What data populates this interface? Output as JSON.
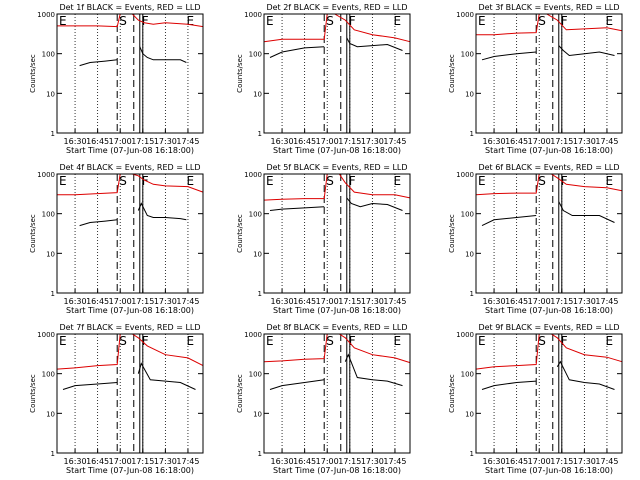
{
  "figure": {
    "xlabel": "Start Time (07-Jun-08 16:18:00)",
    "ylabel": "Counts/sec"
  },
  "colors": {
    "events": "#000000",
    "lld": "#dd0000",
    "axes": "#000000",
    "background": "#ffffff"
  },
  "chart_data": [
    {
      "type": "line",
      "title": "Det 1f BLACK = Events, RED = LLD",
      "xlabel": "Start Time (07-Jun-08 16:18:00)",
      "ylabel": "Counts/sec",
      "yscale": "log",
      "ylim": [
        1,
        1000
      ],
      "xlim": [
        "16:18",
        "17:55"
      ],
      "xticks": [
        "16:30",
        "16:45",
        "17:00",
        "17:15",
        "17:30",
        "17:45"
      ],
      "yticks": [
        "1",
        "10",
        "100",
        "1000"
      ],
      "markers": [
        "E",
        "S",
        "F",
        "E"
      ],
      "grid": false,
      "series": [
        {
          "name": "Events",
          "color": "#000000",
          "x": [
            "16:33",
            "16:40",
            "16:50",
            "16:58",
            "17:09",
            "17:13",
            "17:15",
            "17:18",
            "17:22",
            "17:30",
            "17:40",
            "17:44"
          ],
          "y": [
            50,
            60,
            65,
            70,
            null,
            150,
            100,
            80,
            70,
            70,
            70,
            60
          ]
        },
        {
          "name": "LLD",
          "color": "#dd0000",
          "x": [
            "16:18",
            "16:30",
            "16:45",
            "16:58",
            "17:00",
            "17:04",
            "17:08",
            "17:12",
            "17:16",
            "17:22",
            "17:30",
            "17:45",
            "17:55"
          ],
          "y": [
            500,
            500,
            500,
            480,
            1000,
            1000,
            1000,
            700,
            600,
            550,
            600,
            550,
            480
          ]
        }
      ]
    },
    {
      "type": "line",
      "title": "Det 2f BLACK = Events, RED = LLD",
      "xlabel": "Start Time (07-Jun-08 16:18:00)",
      "ylabel": "Counts/sec",
      "yscale": "log",
      "ylim": [
        1,
        1000
      ],
      "xlim": [
        "16:18",
        "17:55"
      ],
      "xticks": [
        "16:30",
        "16:45",
        "17:00",
        "17:15",
        "17:30",
        "17:45"
      ],
      "yticks": [
        "1",
        "10",
        "100",
        "1000"
      ],
      "markers": [
        "E",
        "S",
        "F",
        "E"
      ],
      "grid": false,
      "series": [
        {
          "name": "Events",
          "color": "#000000",
          "x": [
            "16:22",
            "16:30",
            "16:45",
            "16:58",
            "17:09",
            "17:13",
            "17:15",
            "17:20",
            "17:30",
            "17:40",
            "17:50"
          ],
          "y": [
            80,
            110,
            140,
            150,
            null,
            250,
            180,
            150,
            160,
            170,
            120
          ]
        },
        {
          "name": "LLD",
          "color": "#dd0000",
          "x": [
            "16:18",
            "16:30",
            "16:45",
            "16:58",
            "17:00",
            "17:05",
            "17:12",
            "17:18",
            "17:30",
            "17:45",
            "17:55"
          ],
          "y": [
            200,
            230,
            230,
            230,
            1000,
            1000,
            700,
            400,
            300,
            250,
            200
          ]
        }
      ]
    },
    {
      "type": "line",
      "title": "Det 3f BLACK = Events, RED = LLD",
      "xlabel": "Start Time (07-Jun-08 16:18:00)",
      "ylabel": "Counts/sec",
      "yscale": "log",
      "ylim": [
        1,
        1000
      ],
      "xlim": [
        "16:18",
        "17:55"
      ],
      "xticks": [
        "16:30",
        "16:45",
        "17:00",
        "17:15",
        "17:30",
        "17:45"
      ],
      "yticks": [
        "1",
        "10",
        "100",
        "1000"
      ],
      "markers": [
        "E",
        "S",
        "F",
        "E"
      ],
      "grid": false,
      "series": [
        {
          "name": "Events",
          "color": "#000000",
          "x": [
            "16:22",
            "16:30",
            "16:45",
            "16:58",
            "17:09",
            "17:13",
            "17:16",
            "17:20",
            "17:30",
            "17:40",
            "17:50"
          ],
          "y": [
            70,
            85,
            100,
            110,
            null,
            160,
            120,
            90,
            100,
            110,
            90
          ]
        },
        {
          "name": "LLD",
          "color": "#dd0000",
          "x": [
            "16:18",
            "16:30",
            "16:45",
            "16:58",
            "17:00",
            "17:05",
            "17:12",
            "17:18",
            "17:30",
            "17:45",
            "17:55"
          ],
          "y": [
            300,
            300,
            330,
            340,
            1000,
            1000,
            700,
            400,
            420,
            450,
            380
          ]
        }
      ]
    },
    {
      "type": "line",
      "title": "Det 4f BLACK = Events, RED = LLD",
      "xlabel": "Start Time (07-Jun-08 16:18:00)",
      "ylabel": "Counts/sec",
      "yscale": "log",
      "ylim": [
        1,
        1000
      ],
      "xlim": [
        "16:18",
        "17:55"
      ],
      "xticks": [
        "16:30",
        "16:45",
        "17:00",
        "17:15",
        "17:30",
        "17:45"
      ],
      "yticks": [
        "1",
        "10",
        "100",
        "1000"
      ],
      "markers": [
        "E",
        "S",
        "F",
        "E"
      ],
      "grid": false,
      "series": [
        {
          "name": "Events",
          "color": "#000000",
          "x": [
            "16:33",
            "16:40",
            "16:50",
            "16:58",
            "17:09",
            "17:12",
            "17:14",
            "17:18",
            "17:22",
            "17:30",
            "17:40",
            "17:44"
          ],
          "y": [
            50,
            60,
            65,
            70,
            null,
            120,
            180,
            90,
            80,
            80,
            75,
            70
          ]
        },
        {
          "name": "LLD",
          "color": "#dd0000",
          "x": [
            "16:18",
            "16:30",
            "16:45",
            "16:58",
            "17:00",
            "17:04",
            "17:08",
            "17:12",
            "17:16",
            "17:22",
            "17:30",
            "17:45",
            "17:55"
          ],
          "y": [
            300,
            300,
            320,
            340,
            1000,
            1000,
            1000,
            900,
            700,
            550,
            500,
            480,
            350
          ]
        }
      ]
    },
    {
      "type": "line",
      "title": "Det 5f BLACK = Events, RED = LLD",
      "xlabel": "Start Time (07-Jun-08 16:18:00)",
      "ylabel": "Counts/sec",
      "yscale": "log",
      "ylim": [
        1,
        1000
      ],
      "xlim": [
        "16:18",
        "17:55"
      ],
      "xticks": [
        "16:30",
        "16:45",
        "17:00",
        "17:15",
        "17:30",
        "17:45"
      ],
      "yticks": [
        "1",
        "10",
        "100",
        "1000"
      ],
      "markers": [
        "E",
        "S",
        "F",
        "E"
      ],
      "grid": false,
      "series": [
        {
          "name": "Events",
          "color": "#000000",
          "x": [
            "16:22",
            "16:30",
            "16:45",
            "16:58",
            "17:09",
            "17:13",
            "17:16",
            "17:22",
            "17:30",
            "17:40",
            "17:50"
          ],
          "y": [
            120,
            130,
            140,
            150,
            null,
            250,
            180,
            150,
            180,
            170,
            120
          ]
        },
        {
          "name": "LLD",
          "color": "#dd0000",
          "x": [
            "16:18",
            "16:30",
            "16:45",
            "16:58",
            "17:00",
            "17:04",
            "17:08",
            "17:12",
            "17:18",
            "17:30",
            "17:45",
            "17:55"
          ],
          "y": [
            220,
            230,
            240,
            240,
            1000,
            1000,
            1000,
            600,
            350,
            300,
            300,
            250
          ]
        }
      ]
    },
    {
      "type": "line",
      "title": "Det 6f BLACK = Events, RED = LLD",
      "xlabel": "Start Time (07-Jun-08 16:18:00)",
      "ylabel": "Counts/sec",
      "yscale": "log",
      "ylim": [
        1,
        1000
      ],
      "xlim": [
        "16:18",
        "17:55"
      ],
      "xticks": [
        "16:30",
        "16:45",
        "17:00",
        "17:15",
        "17:30",
        "17:45"
      ],
      "yticks": [
        "1",
        "10",
        "100",
        "1000"
      ],
      "markers": [
        "E",
        "S",
        "F",
        "E"
      ],
      "grid": false,
      "series": [
        {
          "name": "Events",
          "color": "#000000",
          "x": [
            "16:22",
            "16:30",
            "16:45",
            "16:58",
            "17:09",
            "17:13",
            "17:16",
            "17:22",
            "17:30",
            "17:40",
            "17:50"
          ],
          "y": [
            50,
            70,
            80,
            90,
            null,
            200,
            120,
            90,
            90,
            90,
            60
          ]
        },
        {
          "name": "LLD",
          "color": "#dd0000",
          "x": [
            "16:18",
            "16:30",
            "16:45",
            "16:58",
            "17:00",
            "17:04",
            "17:08",
            "17:12",
            "17:18",
            "17:30",
            "17:45",
            "17:55"
          ],
          "y": [
            300,
            320,
            330,
            330,
            1000,
            1000,
            1000,
            800,
            550,
            480,
            450,
            380
          ]
        }
      ]
    },
    {
      "type": "line",
      "title": "Det 7f BLACK = Events, RED = LLD",
      "xlabel": "Start Time (07-Jun-08 16:18:00)",
      "ylabel": "Counts/sec",
      "yscale": "log",
      "ylim": [
        1,
        1000
      ],
      "xlim": [
        "16:18",
        "17:55"
      ],
      "xticks": [
        "16:30",
        "16:45",
        "17:00",
        "17:15",
        "17:30",
        "17:45"
      ],
      "yticks": [
        "1",
        "10",
        "100",
        "1000"
      ],
      "markers": [
        "E",
        "S",
        "F",
        "E"
      ],
      "grid": false,
      "series": [
        {
          "name": "Events",
          "color": "#000000",
          "x": [
            "16:22",
            "16:30",
            "16:45",
            "16:58",
            "17:09",
            "17:12",
            "17:14",
            "17:20",
            "17:30",
            "17:40",
            "17:50"
          ],
          "y": [
            40,
            50,
            55,
            60,
            null,
            100,
            180,
            70,
            65,
            60,
            40
          ]
        },
        {
          "name": "LLD",
          "color": "#dd0000",
          "x": [
            "16:18",
            "16:30",
            "16:45",
            "16:58",
            "17:00",
            "17:04",
            "17:08",
            "17:12",
            "17:18",
            "17:30",
            "17:45",
            "17:55"
          ],
          "y": [
            130,
            140,
            160,
            170,
            1000,
            1000,
            1000,
            800,
            500,
            300,
            250,
            160
          ]
        }
      ]
    },
    {
      "type": "line",
      "title": "Det 8f BLACK = Events, RED = LLD",
      "xlabel": "Start Time (07-Jun-08 16:18:00)",
      "ylabel": "Counts/sec",
      "yscale": "log",
      "ylim": [
        1,
        1000
      ],
      "xlim": [
        "16:18",
        "17:55"
      ],
      "xticks": [
        "16:30",
        "16:45",
        "17:00",
        "17:15",
        "17:30",
        "17:45"
      ],
      "yticks": [
        "1",
        "10",
        "100",
        "1000"
      ],
      "markers": [
        "E",
        "S",
        "F",
        "E"
      ],
      "grid": false,
      "series": [
        {
          "name": "Events",
          "color": "#000000",
          "x": [
            "16:22",
            "16:30",
            "16:45",
            "16:58",
            "17:09",
            "17:12",
            "17:14",
            "17:20",
            "17:30",
            "17:40",
            "17:50"
          ],
          "y": [
            40,
            50,
            60,
            70,
            null,
            200,
            300,
            80,
            70,
            65,
            50
          ]
        },
        {
          "name": "LLD",
          "color": "#dd0000",
          "x": [
            "16:18",
            "16:30",
            "16:45",
            "16:58",
            "17:00",
            "17:04",
            "17:08",
            "17:12",
            "17:18",
            "17:30",
            "17:45",
            "17:55"
          ],
          "y": [
            200,
            210,
            230,
            240,
            1000,
            1000,
            1000,
            800,
            450,
            300,
            250,
            190
          ]
        }
      ]
    },
    {
      "type": "line",
      "title": "Det 9f BLACK = Events, RED = LLD",
      "xlabel": "Start Time (07-Jun-08 16:18:00)",
      "ylabel": "Counts/sec",
      "yscale": "log",
      "ylim": [
        1,
        1000
      ],
      "xlim": [
        "16:18",
        "17:55"
      ],
      "xticks": [
        "16:30",
        "16:45",
        "17:00",
        "17:15",
        "17:30",
        "17:45"
      ],
      "yticks": [
        "1",
        "10",
        "100",
        "1000"
      ],
      "markers": [
        "E",
        "S",
        "F",
        "E"
      ],
      "grid": false,
      "series": [
        {
          "name": "Events",
          "color": "#000000",
          "x": [
            "16:22",
            "16:30",
            "16:45",
            "16:58",
            "17:09",
            "17:12",
            "17:14",
            "17:20",
            "17:30",
            "17:40",
            "17:50"
          ],
          "y": [
            40,
            50,
            60,
            65,
            null,
            150,
            200,
            70,
            60,
            55,
            40
          ]
        },
        {
          "name": "LLD",
          "color": "#dd0000",
          "x": [
            "16:18",
            "16:30",
            "16:45",
            "16:58",
            "17:00",
            "17:04",
            "17:08",
            "17:12",
            "17:18",
            "17:30",
            "17:45",
            "17:55"
          ],
          "y": [
            130,
            150,
            160,
            170,
            1000,
            1000,
            1000,
            800,
            450,
            300,
            260,
            200
          ]
        }
      ]
    }
  ]
}
